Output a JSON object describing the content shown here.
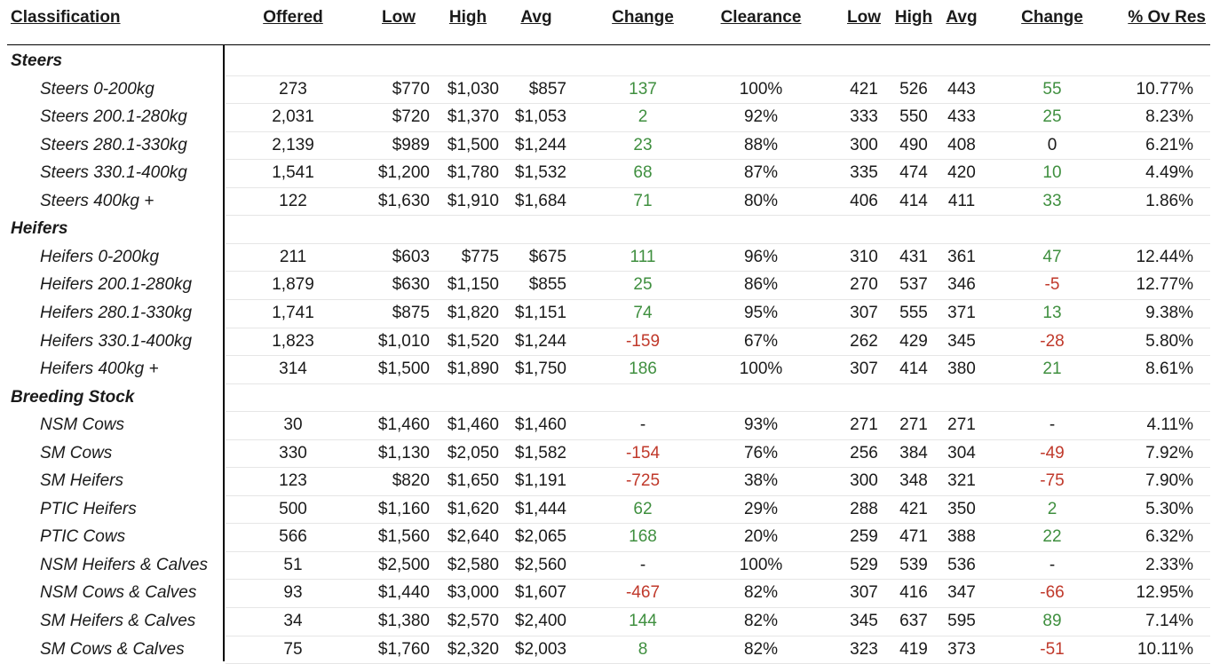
{
  "headers": {
    "classification": "Classification",
    "offered": "Offered",
    "low": "Low",
    "high": "High",
    "avg": "Avg",
    "change": "Change",
    "clearance": "Clearance",
    "low_ckg": "Low",
    "high_ckg": "High",
    "avg_ckg": "Avg",
    "change_ckg": "Change",
    "ov_res": "% Ov Res"
  },
  "rows": [
    {
      "type": "section",
      "label": "Steers"
    },
    {
      "type": "data",
      "label": "Steers 0-200kg",
      "offered": "273",
      "low": "$770",
      "high": "$1,030",
      "avg": "$857",
      "change": "137",
      "change_tone": "pos",
      "clearance": "100%",
      "low_ckg": "421",
      "high_ckg": "526",
      "avg_ckg": "443",
      "change_ckg": "55",
      "change_ckg_tone": "pos",
      "ov_res": "10.77%"
    },
    {
      "type": "data",
      "label": "Steers 200.1-280kg",
      "offered": "2,031",
      "low": "$720",
      "high": "$1,370",
      "avg": "$1,053",
      "change": "2",
      "change_tone": "pos",
      "clearance": "92%",
      "low_ckg": "333",
      "high_ckg": "550",
      "avg_ckg": "433",
      "change_ckg": "25",
      "change_ckg_tone": "pos",
      "ov_res": "8.23%"
    },
    {
      "type": "data",
      "label": "Steers 280.1-330kg",
      "offered": "2,139",
      "low": "$989",
      "high": "$1,500",
      "avg": "$1,244",
      "change": "23",
      "change_tone": "pos",
      "clearance": "88%",
      "low_ckg": "300",
      "high_ckg": "490",
      "avg_ckg": "408",
      "change_ckg": "0",
      "change_ckg_tone": "neu",
      "ov_res": "6.21%"
    },
    {
      "type": "data",
      "label": "Steers 330.1-400kg",
      "offered": "1,541",
      "low": "$1,200",
      "high": "$1,780",
      "avg": "$1,532",
      "change": "68",
      "change_tone": "pos",
      "clearance": "87%",
      "low_ckg": "335",
      "high_ckg": "474",
      "avg_ckg": "420",
      "change_ckg": "10",
      "change_ckg_tone": "pos",
      "ov_res": "4.49%"
    },
    {
      "type": "data",
      "label": "Steers 400kg +",
      "offered": "122",
      "low": "$1,630",
      "high": "$1,910",
      "avg": "$1,684",
      "change": "71",
      "change_tone": "pos",
      "clearance": "80%",
      "low_ckg": "406",
      "high_ckg": "414",
      "avg_ckg": "411",
      "change_ckg": "33",
      "change_ckg_tone": "pos",
      "ov_res": "1.86%"
    },
    {
      "type": "section",
      "label": "Heifers"
    },
    {
      "type": "data",
      "label": "Heifers 0-200kg",
      "offered": "211",
      "low": "$603",
      "high": "$775",
      "avg": "$675",
      "change": "111",
      "change_tone": "pos",
      "clearance": "96%",
      "low_ckg": "310",
      "high_ckg": "431",
      "avg_ckg": "361",
      "change_ckg": "47",
      "change_ckg_tone": "pos",
      "ov_res": "12.44%"
    },
    {
      "type": "data",
      "label": "Heifers 200.1-280kg",
      "offered": "1,879",
      "low": "$630",
      "high": "$1,150",
      "avg": "$855",
      "change": "25",
      "change_tone": "pos",
      "clearance": "86%",
      "low_ckg": "270",
      "high_ckg": "537",
      "avg_ckg": "346",
      "change_ckg": "-5",
      "change_ckg_tone": "neg",
      "ov_res": "12.77%"
    },
    {
      "type": "data",
      "label": "Heifers 280.1-330kg",
      "offered": "1,741",
      "low": "$875",
      "high": "$1,820",
      "avg": "$1,151",
      "change": "74",
      "change_tone": "pos",
      "clearance": "95%",
      "low_ckg": "307",
      "high_ckg": "555",
      "avg_ckg": "371",
      "change_ckg": "13",
      "change_ckg_tone": "pos",
      "ov_res": "9.38%"
    },
    {
      "type": "data",
      "label": "Heifers 330.1-400kg",
      "offered": "1,823",
      "low": "$1,010",
      "high": "$1,520",
      "avg": "$1,244",
      "change": "-159",
      "change_tone": "neg",
      "clearance": "67%",
      "low_ckg": "262",
      "high_ckg": "429",
      "avg_ckg": "345",
      "change_ckg": "-28",
      "change_ckg_tone": "neg",
      "ov_res": "5.80%"
    },
    {
      "type": "data",
      "label": "Heifers 400kg +",
      "offered": "314",
      "low": "$1,500",
      "high": "$1,890",
      "avg": "$1,750",
      "change": "186",
      "change_tone": "pos",
      "clearance": "100%",
      "low_ckg": "307",
      "high_ckg": "414",
      "avg_ckg": "380",
      "change_ckg": "21",
      "change_ckg_tone": "pos",
      "ov_res": "8.61%"
    },
    {
      "type": "section",
      "label": "Breeding Stock"
    },
    {
      "type": "data",
      "label": "NSM Cows",
      "offered": "30",
      "low": "$1,460",
      "high": "$1,460",
      "avg": "$1,460",
      "change": "-",
      "change_tone": "neu",
      "clearance": "93%",
      "low_ckg": "271",
      "high_ckg": "271",
      "avg_ckg": "271",
      "change_ckg": "-",
      "change_ckg_tone": "neu",
      "ov_res": "4.11%"
    },
    {
      "type": "data",
      "label": "SM Cows",
      "offered": "330",
      "low": "$1,130",
      "high": "$2,050",
      "avg": "$1,582",
      "change": "-154",
      "change_tone": "neg",
      "clearance": "76%",
      "low_ckg": "256",
      "high_ckg": "384",
      "avg_ckg": "304",
      "change_ckg": "-49",
      "change_ckg_tone": "neg",
      "ov_res": "7.92%"
    },
    {
      "type": "data",
      "label": "SM Heifers",
      "offered": "123",
      "low": "$820",
      "high": "$1,650",
      "avg": "$1,191",
      "change": "-725",
      "change_tone": "neg",
      "clearance": "38%",
      "low_ckg": "300",
      "high_ckg": "348",
      "avg_ckg": "321",
      "change_ckg": "-75",
      "change_ckg_tone": "neg",
      "ov_res": "7.90%"
    },
    {
      "type": "data",
      "label": "PTIC Heifers",
      "offered": "500",
      "low": "$1,160",
      "high": "$1,620",
      "avg": "$1,444",
      "change": "62",
      "change_tone": "pos",
      "clearance": "29%",
      "low_ckg": "288",
      "high_ckg": "421",
      "avg_ckg": "350",
      "change_ckg": "2",
      "change_ckg_tone": "pos",
      "ov_res": "5.30%"
    },
    {
      "type": "data",
      "label": "PTIC Cows",
      "offered": "566",
      "low": "$1,560",
      "high": "$2,640",
      "avg": "$2,065",
      "change": "168",
      "change_tone": "pos",
      "clearance": "20%",
      "low_ckg": "259",
      "high_ckg": "471",
      "avg_ckg": "388",
      "change_ckg": "22",
      "change_ckg_tone": "pos",
      "ov_res": "6.32%"
    },
    {
      "type": "data",
      "label": "NSM Heifers & Calves",
      "offered": "51",
      "low": "$2,500",
      "high": "$2,580",
      "avg": "$2,560",
      "change": "-",
      "change_tone": "neu",
      "clearance": "100%",
      "low_ckg": "529",
      "high_ckg": "539",
      "avg_ckg": "536",
      "change_ckg": "-",
      "change_ckg_tone": "neu",
      "ov_res": "2.33%"
    },
    {
      "type": "data",
      "label": "NSM Cows & Calves",
      "offered": "93",
      "low": "$1,440",
      "high": "$3,000",
      "avg": "$1,607",
      "change": "-467",
      "change_tone": "neg",
      "clearance": "82%",
      "low_ckg": "307",
      "high_ckg": "416",
      "avg_ckg": "347",
      "change_ckg": "-66",
      "change_ckg_tone": "neg",
      "ov_res": "12.95%"
    },
    {
      "type": "data",
      "label": "SM Heifers & Calves",
      "offered": "34",
      "low": "$1,380",
      "high": "$2,570",
      "avg": "$2,400",
      "change": "144",
      "change_tone": "pos",
      "clearance": "82%",
      "low_ckg": "345",
      "high_ckg": "637",
      "avg_ckg": "595",
      "change_ckg": "89",
      "change_ckg_tone": "pos",
      "ov_res": "7.14%"
    },
    {
      "type": "data",
      "label": "SM Cows & Calves",
      "offered": "75",
      "low": "$1,760",
      "high": "$2,320",
      "avg": "$2,003",
      "change": "8",
      "change_tone": "pos",
      "clearance": "82%",
      "low_ckg": "323",
      "high_ckg": "419",
      "avg_ckg": "373",
      "change_ckg": "-51",
      "change_ckg_tone": "neg",
      "ov_res": "10.11%"
    }
  ]
}
